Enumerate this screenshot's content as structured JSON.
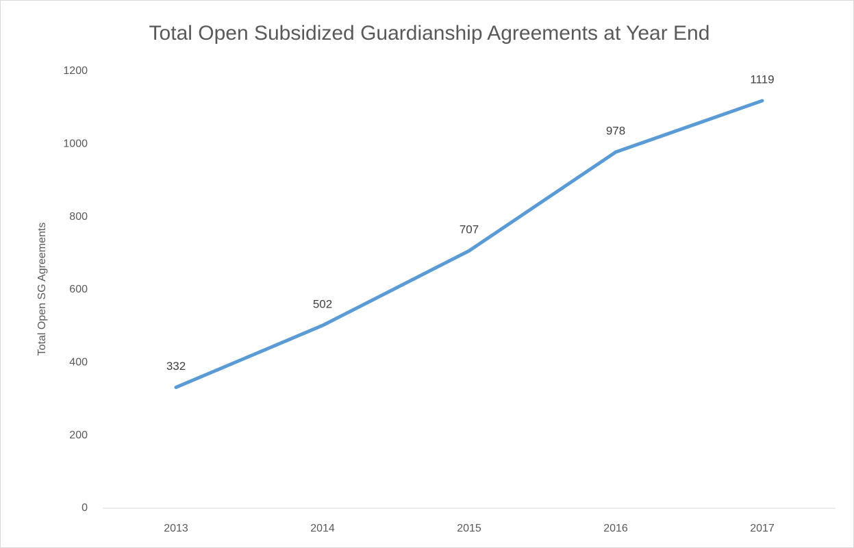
{
  "chart_data": {
    "type": "line",
    "title": "Total Open Subsidized Guardianship Agreements at Year End",
    "y_label": "Total Open SG Agreements",
    "categories": [
      "2013",
      "2014",
      "2015",
      "2016",
      "2017"
    ],
    "values": [
      332,
      502,
      707,
      978,
      1119
    ],
    "color": "#5b9bd5",
    "ylim": [
      0,
      1200
    ],
    "yticks": [
      0,
      200,
      400,
      600,
      800,
      1000,
      1200
    ],
    "grid": false,
    "data_labels": true
  }
}
